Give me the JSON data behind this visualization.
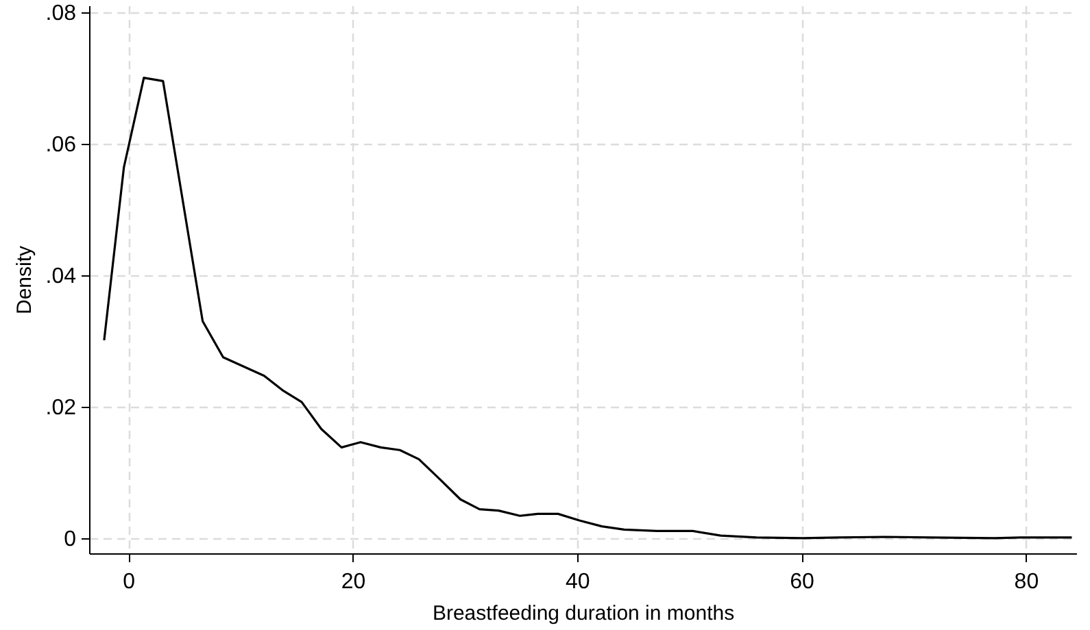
{
  "chart_data": {
    "type": "line",
    "xlabel": "Breastfeeding duration in months",
    "ylabel": "Density",
    "xlim": [
      -3.5,
      84.5
    ],
    "ylim": [
      -0.0023,
      0.081
    ],
    "xticks": [
      0,
      20,
      40,
      60,
      80
    ],
    "yticks": [
      {
        "value": 0,
        "label": "0"
      },
      {
        "value": 0.02,
        "label": ".02"
      },
      {
        "value": 0.04,
        "label": ".04"
      },
      {
        "value": 0.06,
        "label": ".06"
      },
      {
        "value": 0.08,
        "label": ".08"
      }
    ],
    "grid": true,
    "line_style": "solid",
    "marker": "none",
    "series": [
      {
        "color": "#000000",
        "x": [
          -2.16,
          -0.4,
          1.38,
          3.09,
          6.62,
          8.45,
          12.1,
          13.74,
          15.45,
          17.2,
          19.0,
          20.7,
          22.5,
          24.2,
          25.9,
          27.8,
          29.6,
          31.3,
          33.0,
          34.9,
          36.5,
          38.3,
          40.2,
          42.2,
          44.2,
          47.1,
          50.3,
          52.8,
          56.0,
          60.1,
          63.3,
          67.4,
          71.5,
          77.2,
          79.6,
          84.1
        ],
        "values": [
          0.0301,
          0.0564,
          0.07,
          0.0695,
          0.033,
          0.0275,
          0.0247,
          0.0225,
          0.0207,
          0.0166,
          0.0138,
          0.0146,
          0.0138,
          0.0134,
          0.012,
          0.0089,
          0.0059,
          0.0044,
          0.0042,
          0.0034,
          0.0037,
          0.0037,
          0.0027,
          0.0018,
          0.0013,
          0.0011,
          0.0011,
          0.0004,
          0.0001,
          0.0,
          0.0001,
          0.0002,
          0.0001,
          0.0,
          0.0001,
          0.0001
        ]
      }
    ]
  }
}
